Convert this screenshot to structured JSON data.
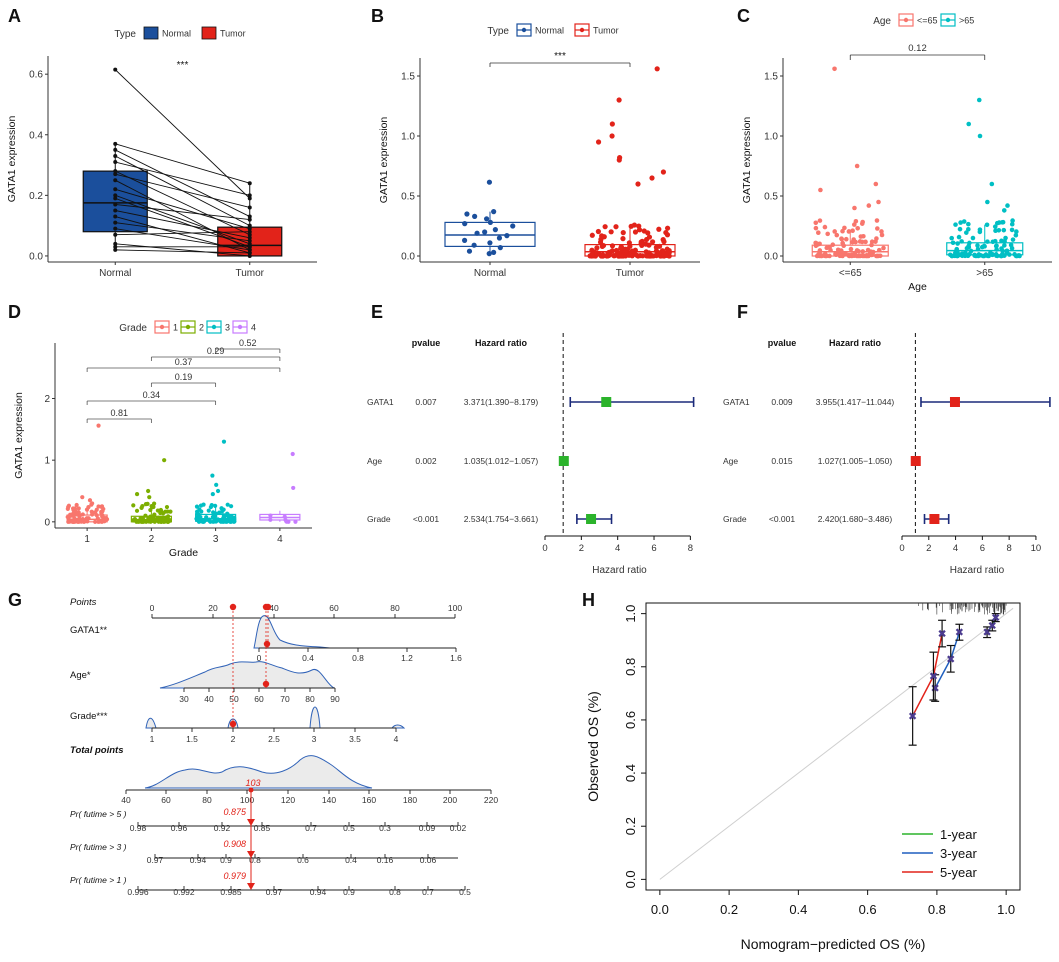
{
  "chart_data": [
    {
      "panel": "A",
      "type": "paired-boxplot",
      "legend": {
        "title": "Type",
        "items": [
          {
            "label": "Normal",
            "color": "#1B4F9C"
          },
          {
            "label": "Tumor",
            "color": "#E2231A"
          }
        ]
      },
      "ylabel": "GATA1 expression",
      "categories": [
        "Normal",
        "Tumor"
      ],
      "yticks": [
        "0.0",
        "0.2",
        "0.4",
        "0.6"
      ],
      "ylim": [
        -0.02,
        0.66
      ],
      "significance": "***",
      "boxes": [
        {
          "q1": 0.08,
          "median": 0.175,
          "q3": 0.28,
          "whisker_low": 0.02,
          "whisker_high": 0.37
        },
        {
          "q1": 0.0,
          "median": 0.035,
          "q3": 0.095,
          "whisker_low": 0.0,
          "whisker_high": 0.24
        }
      ],
      "pairs": [
        [
          0.615,
          0.19
        ],
        [
          0.37,
          0.24
        ],
        [
          0.35,
          0.13
        ],
        [
          0.33,
          0.1
        ],
        [
          0.31,
          0.2
        ],
        [
          0.28,
          0.07
        ],
        [
          0.27,
          0.16
        ],
        [
          0.25,
          0.02
        ],
        [
          0.22,
          0.09
        ],
        [
          0.2,
          0.04
        ],
        [
          0.19,
          0.03
        ],
        [
          0.17,
          0.12
        ],
        [
          0.15,
          0.06
        ],
        [
          0.13,
          0.01
        ],
        [
          0.11,
          0.05
        ],
        [
          0.09,
          0.02
        ],
        [
          0.07,
          0.08
        ],
        [
          0.04,
          0.0
        ],
        [
          0.03,
          0.03
        ],
        [
          0.02,
          0.01
        ]
      ]
    },
    {
      "panel": "B",
      "type": "boxplot-jitter",
      "legend": {
        "title": "Type",
        "items": [
          {
            "label": "Normal",
            "color": "#1B4F9C"
          },
          {
            "label": "Tumor",
            "color": "#E2231A"
          }
        ]
      },
      "ylabel": "GATA1 expression",
      "categories": [
        "Normal",
        "Tumor"
      ],
      "yticks": [
        "0.0",
        "0.5",
        "1.0",
        "1.5"
      ],
      "ylim": [
        -0.05,
        1.65
      ],
      "significance": "***",
      "boxes": [
        {
          "q1": 0.08,
          "median": 0.175,
          "q3": 0.28,
          "whisker_low": 0.02,
          "whisker_high": 0.37
        },
        {
          "q1": 0.0,
          "median": 0.035,
          "q3": 0.095,
          "whisker_low": 0.0,
          "whisker_high": 0.24
        }
      ],
      "outliers_tumor": [
        1.56,
        1.3,
        1.1,
        1.0,
        0.95,
        0.82,
        0.8,
        0.7,
        0.65,
        0.6
      ]
    },
    {
      "panel": "C",
      "type": "boxplot-jitter",
      "legend": {
        "title": "Age",
        "items": [
          {
            "label": "<=65",
            "color": "#F8766D"
          },
          {
            "label": ">65",
            "color": "#00BFC4"
          }
        ]
      },
      "ylabel": "GATA1  expression",
      "xlabel": "Age",
      "categories": [
        "<=65",
        ">65"
      ],
      "yticks": [
        "0.0",
        "0.5",
        "1.0",
        "1.5"
      ],
      "ylim": [
        -0.05,
        1.65
      ],
      "pvalue": "0.12",
      "boxes": [
        {
          "q1": 0.0,
          "median": 0.035,
          "q3": 0.09,
          "whisker_low": 0.0,
          "whisker_high": 0.22
        },
        {
          "q1": 0.01,
          "median": 0.045,
          "q3": 0.11,
          "whisker_low": 0.0,
          "whisker_high": 0.26
        }
      ],
      "outliers": [
        [
          1.56,
          0.75,
          0.6,
          0.55,
          0.45,
          0.42,
          0.4
        ],
        [
          1.3,
          1.1,
          1.0,
          0.6,
          0.45,
          0.42,
          0.38
        ]
      ]
    },
    {
      "panel": "D",
      "type": "boxplot-jitter",
      "legend": {
        "title": "Grade",
        "items": [
          {
            "label": "1",
            "color": "#F8766D"
          },
          {
            "label": "2",
            "color": "#7CAE00"
          },
          {
            "label": "3",
            "color": "#00BFC4"
          },
          {
            "label": "4",
            "color": "#C77CFF"
          }
        ]
      },
      "ylabel": "GATA1  expression",
      "xlabel": "Grade",
      "categories": [
        "1",
        "2",
        "3",
        "4"
      ],
      "yticks": [
        "0",
        "1",
        "2"
      ],
      "ylim": [
        -0.1,
        2.9
      ],
      "comparisons": [
        {
          "from": 1,
          "to": 2,
          "p": "0.81"
        },
        {
          "from": 1,
          "to": 3,
          "p": "0.34"
        },
        {
          "from": 1,
          "to": 4,
          "p": "0.37"
        },
        {
          "from": 2,
          "to": 3,
          "p": "0.19"
        },
        {
          "from": 2,
          "to": 4,
          "p": "0.29"
        },
        {
          "from": 3,
          "to": 4,
          "p": "0.52"
        }
      ],
      "boxes": [
        {
          "q1": 0.0,
          "median": 0.04,
          "q3": 0.11,
          "whisker_low": 0.0,
          "whisker_high": 0.25
        },
        {
          "q1": 0.0,
          "median": 0.035,
          "q3": 0.09,
          "whisker_low": 0.0,
          "whisker_high": 0.22
        },
        {
          "q1": 0.01,
          "median": 0.05,
          "q3": 0.12,
          "whisker_low": 0.0,
          "whisker_high": 0.28
        },
        {
          "q1": 0.03,
          "median": 0.07,
          "q3": 0.12,
          "whisker_low": 0.0,
          "whisker_high": 0.18
        }
      ],
      "outliers": [
        [
          1.56,
          0.4,
          0.35
        ],
        [
          1.0,
          0.5,
          0.45,
          0.4
        ],
        [
          1.3,
          0.75,
          0.6,
          0.5,
          0.45
        ],
        [
          1.1,
          0.55
        ]
      ]
    },
    {
      "panel": "E",
      "type": "forest",
      "headers": {
        "pvalue": "pvalue",
        "hr": "Hazard ratio"
      },
      "xlabel": "Hazard ratio",
      "xticks": [
        0,
        2,
        4,
        6,
        8
      ],
      "xlim": [
        0,
        8.2
      ],
      "color": "#2BB32B",
      "rows": [
        {
          "name": "GATA1",
          "pvalue": "0.007",
          "hr_text": "3.371(1.390−8.179)",
          "hr": 3.371,
          "low": 1.39,
          "high": 8.179
        },
        {
          "name": "Age",
          "pvalue": "0.002",
          "hr_text": "1.035(1.012−1.057)",
          "hr": 1.035,
          "low": 1.012,
          "high": 1.057
        },
        {
          "name": "Grade",
          "pvalue": "<0.001",
          "hr_text": "2.534(1.754−3.661)",
          "hr": 2.534,
          "low": 1.754,
          "high": 3.661
        }
      ]
    },
    {
      "panel": "F",
      "type": "forest",
      "headers": {
        "pvalue": "pvalue",
        "hr": "Hazard ratio"
      },
      "xlabel": "Hazard ratio",
      "xticks": [
        0,
        2,
        4,
        6,
        8,
        10
      ],
      "xlim": [
        0,
        11.2
      ],
      "color": "#E2231A",
      "rows": [
        {
          "name": "GATA1",
          "pvalue": "0.009",
          "hr_text": "3.955(1.417−11.044)",
          "hr": 3.955,
          "low": 1.417,
          "high": 11.044
        },
        {
          "name": "Age",
          "pvalue": "0.015",
          "hr_text": "1.027(1.005−1.050)",
          "hr": 1.027,
          "low": 1.005,
          "high": 1.05
        },
        {
          "name": "Grade",
          "pvalue": "<0.001",
          "hr_text": "2.420(1.680−3.486)",
          "hr": 2.42,
          "low": 1.68,
          "high": 3.486
        }
      ]
    },
    {
      "panel": "G",
      "type": "nomogram",
      "rows": {
        "points": {
          "label": "Points",
          "ticks": [
            "0",
            "20",
            "40",
            "60",
            "80",
            "100"
          ]
        },
        "gata1": {
          "label": "GATA1**",
          "ticks": [
            "0",
            "0.4",
            "0.8",
            "1.2",
            "1.6"
          ]
        },
        "age": {
          "label": "Age*",
          "ticks": [
            "30",
            "40",
            "50",
            "60",
            "70",
            "80",
            "90"
          ]
        },
        "grade": {
          "label": "Grade***",
          "ticks": [
            "1",
            "1.5",
            "2",
            "2.5",
            "3",
            "3.5",
            "4"
          ]
        },
        "total": {
          "label": "Total points",
          "ticks": [
            "40",
            "60",
            "80",
            "100",
            "120",
            "140",
            "160",
            "180",
            "200",
            "220"
          ],
          "value": "103"
        },
        "surv5": {
          "label": "Pr( futime > 5 )",
          "ticks": [
            "0.98",
            "0.96",
            "0.92",
            "0.85",
            "0.7",
            "0.5",
            "0.3",
            "0.09",
            "0.02"
          ],
          "value": "0.875"
        },
        "surv3": {
          "label": "Pr( futime > 3 )",
          "ticks": [
            "0.97",
            "0.94",
            "0.9",
            "0.8",
            "0.6",
            "0.4",
            "0.16",
            "0.06"
          ],
          "value": "0.908"
        },
        "surv1": {
          "label": "Pr( futime > 1 )",
          "ticks": [
            "0.996",
            "0.992",
            "0.985",
            "0.97",
            "0.94",
            "0.9",
            "0.8",
            "0.7",
            "0.5"
          ],
          "value": "0.979"
        }
      }
    },
    {
      "panel": "H",
      "type": "calibration",
      "xlabel": "Nomogram−predicted OS (%)",
      "ylabel": "Observed OS (%)",
      "xticks": [
        "0.0",
        "0.2",
        "0.4",
        "0.6",
        "0.8",
        "1.0"
      ],
      "yticks": [
        "0.0",
        "0.2",
        "0.4",
        "0.6",
        "0.8",
        "1.0"
      ],
      "xlim": [
        -0.04,
        1.04
      ],
      "ylim": [
        -0.04,
        1.04
      ],
      "series": [
        {
          "name": "1-year",
          "color": "#2BB32B",
          "x": [
            0.945,
            0.96,
            0.97
          ],
          "y": [
            0.93,
            0.955,
            0.985
          ],
          "err": [
            0.02,
            0.02,
            0.015
          ]
        },
        {
          "name": "3-year",
          "color": "#1F5FBF",
          "x": [
            0.795,
            0.84,
            0.865
          ],
          "y": [
            0.72,
            0.83,
            0.93
          ],
          "err": [
            0.05,
            0.05,
            0.03
          ]
        },
        {
          "name": "5-year",
          "color": "#E2231A",
          "x": [
            0.73,
            0.79,
            0.815
          ],
          "y": [
            0.615,
            0.765,
            0.925
          ],
          "err": [
            0.11,
            0.09,
            0.05
          ]
        }
      ]
    }
  ],
  "panel_labels": [
    "A",
    "B",
    "C",
    "D",
    "E",
    "F",
    "G",
    "H"
  ]
}
